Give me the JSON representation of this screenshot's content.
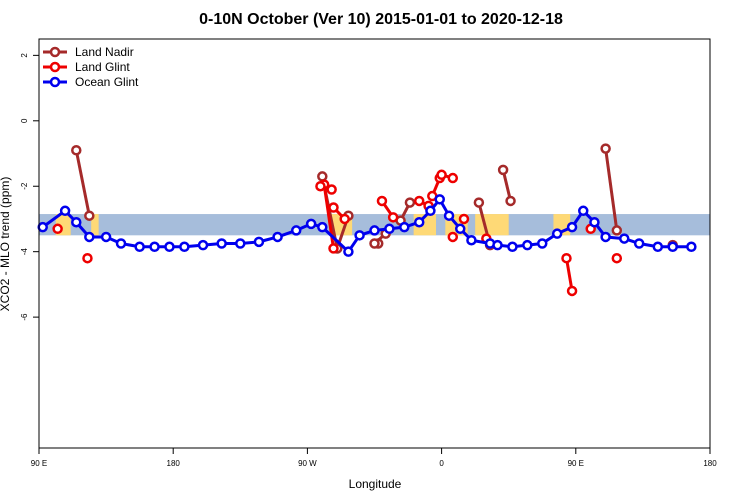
{
  "chart_data": {
    "type": "line",
    "title": "0-10N October (Ver 10)   2015-01-01 to 2020-12-18",
    "xlabel": "Longitude",
    "ylabel": "XCO2 - MLO trend (ppm)",
    "xlim": [
      30,
      210
    ],
    "ylim": [
      -10,
      2.5
    ],
    "x_ticks": [
      {
        "value": 30,
        "label": "90 E"
      },
      {
        "value": 66,
        "label": "180"
      },
      {
        "value": 102,
        "label": "90 W"
      },
      {
        "value": 138,
        "label": "0"
      },
      {
        "value": 174,
        "label": "90 E"
      },
      {
        "value": 210,
        "label": "180"
      }
    ],
    "y_ticks": [
      {
        "value": 2,
        "label": "2"
      },
      {
        "value": 0,
        "label": "0"
      },
      {
        "value": -2,
        "label": "-2"
      },
      {
        "value": -4,
        "label": "-4"
      },
      {
        "value": -6,
        "label": "-6"
      }
    ],
    "land_band": {
      "y_min": -3.5,
      "y_max": -2.85,
      "ocean_color": "#a6bddb",
      "land_color": "#fed976"
    },
    "land_spans": [
      [
        34.5,
        38.5
      ],
      [
        44,
        46
      ],
      [
        108,
        114
      ],
      [
        130.5,
        136.5
      ],
      [
        139,
        145
      ],
      [
        147,
        156
      ],
      [
        168,
        172.5
      ]
    ],
    "legend_position": "top-left",
    "series": [
      {
        "name": "Land Nadir",
        "color": "#a52a2a",
        "segments": [
          [
            [
              40,
              -0.9
            ],
            [
              43.5,
              -2.9
            ]
          ],
          [
            [
              106,
              -1.7
            ],
            [
              110,
              -3.9
            ]
          ],
          [
            [
              110,
              -3.9
            ],
            [
              113,
              -2.9
            ]
          ],
          [
            [
              121,
              -3.75
            ]
          ],
          [
            [
              120,
              -3.75
            ],
            [
              123,
              -3.45
            ]
          ],
          [
            [
              127,
              -3.05
            ],
            [
              129.5,
              -2.5
            ]
          ],
          [
            [
              148,
              -2.5
            ],
            [
              151,
              -3.8
            ]
          ],
          [
            [
              154.5,
              -1.5
            ],
            [
              156.5,
              -2.45
            ]
          ],
          [
            [
              182,
              -0.85
            ],
            [
              185,
              -3.35
            ]
          ],
          [
            [
              200,
              -3.8
            ]
          ]
        ]
      },
      {
        "name": "Land Glint",
        "color": "#ee0000",
        "segments": [
          [
            [
              35,
              -3.3
            ]
          ],
          [
            [
              43,
              -4.2
            ]
          ],
          [
            [
              109,
              -2.65
            ],
            [
              112,
              -3.0
            ]
          ],
          [
            [
              106.5,
              -1.95
            ],
            [
              109,
              -3.9
            ]
          ],
          [
            [
              105.5,
              -2.0
            ],
            [
              108.5,
              -2.1
            ]
          ],
          [
            [
              122,
              -2.45
            ],
            [
              125,
              -2.95
            ]
          ],
          [
            [
              132,
              -2.45
            ],
            [
              134.5,
              -2.6
            ]
          ],
          [
            [
              135.5,
              -2.3
            ],
            [
              137.5,
              -1.75
            ]
          ],
          [
            [
              138,
              -1.65
            ],
            [
              141,
              -1.75
            ]
          ],
          [
            [
              141,
              -3.55
            ]
          ],
          [
            [
              144,
              -3.0
            ]
          ],
          [
            [
              150,
              -3.6
            ]
          ],
          [
            [
              171.5,
              -4.2
            ],
            [
              173,
              -5.2
            ]
          ],
          [
            [
              178,
              -3.3
            ]
          ],
          [
            [
              185,
              -4.2
            ]
          ]
        ]
      },
      {
        "name": "Ocean Glint",
        "color": "#0000ee",
        "segments": [
          [
            [
              31,
              -3.25
            ],
            [
              37,
              -2.75
            ],
            [
              40,
              -3.1
            ],
            [
              43.5,
              -3.55
            ],
            [
              48,
              -3.55
            ],
            [
              52,
              -3.75
            ],
            [
              57,
              -3.85
            ],
            [
              61,
              -3.85
            ],
            [
              65,
              -3.85
            ],
            [
              69,
              -3.85
            ],
            [
              74,
              -3.8
            ],
            [
              79,
              -3.75
            ],
            [
              84,
              -3.75
            ],
            [
              89,
              -3.7
            ],
            [
              94,
              -3.55
            ],
            [
              99,
              -3.35
            ],
            [
              103,
              -3.15
            ],
            [
              106,
              -3.25
            ],
            [
              113,
              -4.0
            ],
            [
              116,
              -3.5
            ],
            [
              120,
              -3.35
            ],
            [
              124,
              -3.3
            ],
            [
              128,
              -3.25
            ],
            [
              132,
              -3.1
            ],
            [
              135,
              -2.75
            ],
            [
              137.5,
              -2.4
            ],
            [
              140,
              -2.9
            ],
            [
              143,
              -3.3
            ],
            [
              146,
              -3.65
            ],
            [
              151,
              -3.75
            ],
            [
              153,
              -3.8
            ],
            [
              157,
              -3.85
            ],
            [
              161,
              -3.8
            ],
            [
              165,
              -3.75
            ],
            [
              169,
              -3.45
            ],
            [
              173,
              -3.25
            ],
            [
              176,
              -2.75
            ],
            [
              179,
              -3.1
            ],
            [
              182,
              -3.55
            ],
            [
              187,
              -3.6
            ],
            [
              191,
              -3.75
            ],
            [
              196,
              -3.85
            ],
            [
              200,
              -3.85
            ],
            [
              205,
              -3.85
            ]
          ]
        ]
      }
    ]
  }
}
